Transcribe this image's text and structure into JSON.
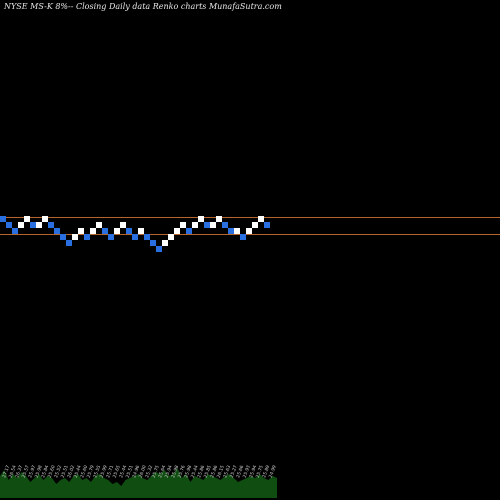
{
  "chart_data": {
    "type": "renko",
    "title": "NYSE MS-K 8%-- Closing Daily data Renko charts MunafaSutra.com",
    "levels": [
      26.15,
      25.65
    ],
    "level_color": "#b5652a",
    "colors": {
      "up": "#ffffff",
      "down": "#2a6fe0",
      "volume": "#0f4d10",
      "background": "#000000"
    },
    "bricks": [
      {
        "dir": "down",
        "col": 0,
        "row": 0
      },
      {
        "dir": "down",
        "col": 1,
        "row": 1
      },
      {
        "dir": "down",
        "col": 2,
        "row": 2
      },
      {
        "dir": "up",
        "col": 3,
        "row": 1
      },
      {
        "dir": "up",
        "col": 4,
        "row": 0
      },
      {
        "dir": "down",
        "col": 5,
        "row": 1
      },
      {
        "dir": "up",
        "col": 6,
        "row": 1
      },
      {
        "dir": "up",
        "col": 7,
        "row": 0
      },
      {
        "dir": "down",
        "col": 8,
        "row": 1
      },
      {
        "dir": "down",
        "col": 9,
        "row": 2
      },
      {
        "dir": "down",
        "col": 10,
        "row": 3
      },
      {
        "dir": "down",
        "col": 11,
        "row": 4
      },
      {
        "dir": "up",
        "col": 12,
        "row": 3
      },
      {
        "dir": "up",
        "col": 13,
        "row": 2
      },
      {
        "dir": "down",
        "col": 14,
        "row": 3
      },
      {
        "dir": "up",
        "col": 15,
        "row": 2
      },
      {
        "dir": "up",
        "col": 16,
        "row": 1
      },
      {
        "dir": "down",
        "col": 17,
        "row": 2
      },
      {
        "dir": "down",
        "col": 18,
        "row": 3
      },
      {
        "dir": "up",
        "col": 19,
        "row": 2
      },
      {
        "dir": "up",
        "col": 20,
        "row": 1
      },
      {
        "dir": "down",
        "col": 21,
        "row": 2
      },
      {
        "dir": "down",
        "col": 22,
        "row": 3
      },
      {
        "dir": "up",
        "col": 23,
        "row": 2
      },
      {
        "dir": "down",
        "col": 24,
        "row": 3
      },
      {
        "dir": "down",
        "col": 25,
        "row": 4
      },
      {
        "dir": "down",
        "col": 26,
        "row": 5
      },
      {
        "dir": "up",
        "col": 27,
        "row": 4
      },
      {
        "dir": "up",
        "col": 28,
        "row": 3
      },
      {
        "dir": "up",
        "col": 29,
        "row": 2
      },
      {
        "dir": "up",
        "col": 30,
        "row": 1
      },
      {
        "dir": "down",
        "col": 31,
        "row": 2
      },
      {
        "dir": "up",
        "col": 32,
        "row": 1
      },
      {
        "dir": "up",
        "col": 33,
        "row": 0
      },
      {
        "dir": "down",
        "col": 34,
        "row": 1
      },
      {
        "dir": "up",
        "col": 35,
        "row": 1
      },
      {
        "dir": "up",
        "col": 36,
        "row": 0
      },
      {
        "dir": "down",
        "col": 37,
        "row": 1
      },
      {
        "dir": "down",
        "col": 38,
        "row": 2
      },
      {
        "dir": "up",
        "col": 39,
        "row": 2
      },
      {
        "dir": "down",
        "col": 40,
        "row": 3
      },
      {
        "dir": "up",
        "col": 41,
        "row": 2
      },
      {
        "dir": "up",
        "col": 42,
        "row": 1
      },
      {
        "dir": "up",
        "col": 43,
        "row": 0
      },
      {
        "dir": "down",
        "col": 44,
        "row": 1
      }
    ],
    "date_labels": [
      "27.17",
      "26.54",
      "26.37",
      "25.57",
      "25.97",
      "25.98",
      "25.84",
      "25.60",
      "25.52",
      "25.51",
      "26.02",
      "25.44",
      "25.60",
      "25.79",
      "25.55",
      "25.99",
      "25.71",
      "25.65",
      "25.44",
      "25.51",
      "24.96",
      "26.00",
      "25.32",
      "25.75",
      "25.64",
      "25.94",
      "25.98",
      "25.76",
      "25.98",
      "25.44",
      "25.86",
      "25.85",
      "25.86",
      "26.15",
      "25.63",
      "25.27",
      "25.66",
      "25.93",
      "25.94",
      "25.75",
      "25.89",
      "24.99"
    ],
    "volume": [
      0.55,
      0.7,
      0.45,
      0.6,
      0.5,
      0.65,
      0.55,
      0.4,
      0.5,
      0.6,
      0.45,
      0.55,
      0.5,
      0.35,
      0.45,
      0.5,
      0.4,
      0.55,
      0.6,
      0.45,
      0.5,
      0.4,
      0.55,
      0.6,
      0.5,
      0.45,
      0.35,
      0.4,
      0.3,
      0.45,
      0.5,
      0.55,
      0.6,
      0.5,
      0.45,
      0.55,
      0.65,
      0.6,
      0.7,
      0.55,
      0.6,
      0.75,
      0.5,
      0.6,
      0.4,
      0.55,
      0.5,
      0.45,
      0.6,
      0.55,
      0.5,
      0.45,
      0.55,
      0.6,
      0.5,
      0.4,
      0.45,
      0.5,
      0.55,
      0.5,
      0.6,
      0.5,
      0.45,
      0.55,
      0.5
    ]
  }
}
